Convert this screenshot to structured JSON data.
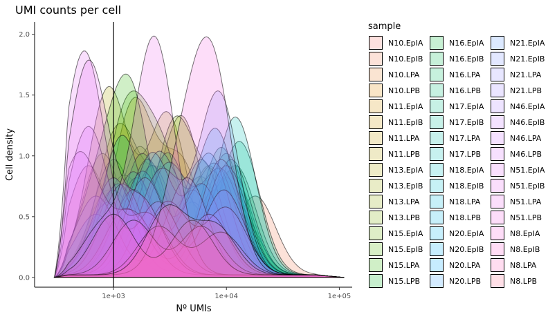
{
  "chart_data": {
    "type": "area",
    "title": "UMI counts per cell",
    "xlabel": "Nº UMIs",
    "ylabel": "Cell density",
    "x_scale": "log10",
    "xlim": [
      200,
      130000
    ],
    "ylim": [
      -0.08,
      2.1
    ],
    "x_ticks": [
      {
        "value": 1000,
        "label": "1e+03"
      },
      {
        "value": 10000,
        "label": "1e+04"
      },
      {
        "value": 100000,
        "label": "1e+05"
      }
    ],
    "y_ticks": [
      {
        "value": 0.0,
        "label": "0.0"
      },
      {
        "value": 0.5,
        "label": "0.5"
      },
      {
        "value": 1.0,
        "label": "1.0"
      },
      {
        "value": 1.5,
        "label": "1.5"
      },
      {
        "value": 2.0,
        "label": "2.0"
      }
    ],
    "vline": {
      "x": 1000
    },
    "grid": false,
    "legend_title": "sample",
    "legend_position": "right",
    "series": [
      {
        "name": "N10.EpIA",
        "color": "#F8766D",
        "peaks": [
          [
            600,
            0.9
          ],
          [
            5000,
            0.45
          ]
        ]
      },
      {
        "name": "N10.EpIB",
        "color": "#F27D52",
        "peaks": [
          [
            2000,
            0.5
          ],
          [
            18000,
            0.65
          ]
        ]
      },
      {
        "name": "N10.LPA",
        "color": "#EA8331",
        "peaks": [
          [
            1200,
            0.55
          ],
          [
            9000,
            0.6
          ]
        ]
      },
      {
        "name": "N10.LPB",
        "color": "#E38900",
        "peaks": [
          [
            900,
            0.7
          ],
          [
            6000,
            0.5
          ]
        ]
      },
      {
        "name": "N11.EpIA",
        "color": "#D89000",
        "peaks": [
          [
            1500,
            1.4
          ],
          [
            4000,
            0.9
          ]
        ]
      },
      {
        "name": "N11.EpIB",
        "color": "#CF9400",
        "peaks": [
          [
            1100,
            1.2
          ],
          [
            3000,
            0.8
          ]
        ]
      },
      {
        "name": "N11.LPA",
        "color": "#C49A00",
        "peaks": [
          [
            800,
            1.0
          ],
          [
            7000,
            0.9
          ]
        ]
      },
      {
        "name": "N11.LPB",
        "color": "#B79F00",
        "peaks": [
          [
            2500,
            0.7
          ],
          [
            12000,
            0.6
          ]
        ]
      },
      {
        "name": "N13.EpIA",
        "color": "#ABA300",
        "peaks": [
          [
            900,
            1.53
          ],
          [
            3000,
            1.32
          ]
        ]
      },
      {
        "name": "N13.EpIB",
        "color": "#9DA700",
        "peaks": [
          [
            4000,
            1.3
          ],
          [
            1200,
            0.8
          ]
        ]
      },
      {
        "name": "N13.LPA",
        "color": "#8FAA00",
        "peaks": [
          [
            1700,
            1.05
          ],
          [
            6000,
            0.8
          ]
        ]
      },
      {
        "name": "N13.LPB",
        "color": "#7CAE00",
        "peaks": [
          [
            3500,
            1.25
          ],
          [
            9000,
            0.7
          ]
        ]
      },
      {
        "name": "N15.EpIA",
        "color": "#68B100",
        "peaks": [
          [
            1000,
            0.95
          ],
          [
            5000,
            0.6
          ]
        ]
      },
      {
        "name": "N15.EpIB",
        "color": "#4EB400",
        "peaks": [
          [
            1300,
            1.3
          ],
          [
            2800,
            0.9
          ]
        ]
      },
      {
        "name": "N15.LPA",
        "color": "#2BB600",
        "peaks": [
          [
            1400,
            1.48
          ],
          [
            700,
            0.6
          ]
        ]
      },
      {
        "name": "N15.LPB",
        "color": "#00B81F",
        "peaks": [
          [
            1800,
            1.0
          ],
          [
            8000,
            0.7
          ]
        ]
      },
      {
        "name": "N16.EpIA",
        "color": "#00BA38",
        "peaks": [
          [
            2200,
            0.9
          ],
          [
            10000,
            0.8
          ]
        ]
      },
      {
        "name": "N16.EpIB",
        "color": "#00BC50",
        "peaks": [
          [
            3000,
            1.0
          ],
          [
            11000,
            0.85
          ]
        ]
      },
      {
        "name": "N16.LPA",
        "color": "#00BD64",
        "peaks": [
          [
            1000,
            0.7
          ],
          [
            12000,
            0.9
          ]
        ]
      },
      {
        "name": "N16.LPB",
        "color": "#00BF76",
        "peaks": [
          [
            1600,
            0.8
          ],
          [
            9000,
            1.05
          ]
        ]
      },
      {
        "name": "N17.EpIA",
        "color": "#00C087",
        "peaks": [
          [
            1200,
            1.15
          ],
          [
            13000,
            1.1
          ]
        ]
      },
      {
        "name": "N17.EpIB",
        "color": "#00C097",
        "peaks": [
          [
            2000,
            0.95
          ],
          [
            10000,
            1.0
          ]
        ]
      },
      {
        "name": "N17.LPA",
        "color": "#00C0A7",
        "peaks": [
          [
            900,
            0.6
          ],
          [
            11000,
            0.95
          ]
        ]
      },
      {
        "name": "N17.LPB",
        "color": "#00C0B5",
        "peaks": [
          [
            1500,
            0.85
          ],
          [
            12000,
            1.3
          ]
        ]
      },
      {
        "name": "N18.EpIA",
        "color": "#00BFC4",
        "peaks": [
          [
            2500,
            1.0
          ],
          [
            8000,
            0.9
          ]
        ]
      },
      {
        "name": "N18.EpIB",
        "color": "#00BDD2",
        "peaks": [
          [
            1100,
            0.75
          ],
          [
            6000,
            0.95
          ]
        ]
      },
      {
        "name": "N18.LPA",
        "color": "#00BBDE",
        "peaks": [
          [
            3000,
            0.9
          ],
          [
            9000,
            0.85
          ]
        ]
      },
      {
        "name": "N18.LPB",
        "color": "#00B8E7",
        "peaks": [
          [
            700,
            0.5
          ],
          [
            5000,
            0.7
          ]
        ]
      },
      {
        "name": "N20.EpIA",
        "color": "#00B4F0",
        "peaks": [
          [
            1800,
            0.85
          ],
          [
            7000,
            1.0
          ]
        ]
      },
      {
        "name": "N20.EpIB",
        "color": "#00B0F6",
        "peaks": [
          [
            2200,
            1.0
          ],
          [
            8000,
            1.2
          ]
        ]
      },
      {
        "name": "N20.LPA",
        "color": "#00A9FF",
        "peaks": [
          [
            1500,
            0.7
          ],
          [
            6000,
            0.75
          ]
        ]
      },
      {
        "name": "N20.LPB",
        "color": "#35A2FF",
        "peaks": [
          [
            1000,
            0.8
          ],
          [
            10000,
            0.9
          ]
        ]
      },
      {
        "name": "N21.EpIA",
        "color": "#619CFF",
        "peaks": [
          [
            1200,
            0.75
          ],
          [
            9000,
            0.95
          ]
        ]
      },
      {
        "name": "N21.EpIB",
        "color": "#7F96FF",
        "peaks": [
          [
            2600,
            0.85
          ],
          [
            8500,
            1.5
          ]
        ]
      },
      {
        "name": "N21.LPA",
        "color": "#9590FF",
        "peaks": [
          [
            700,
            0.65
          ],
          [
            4500,
            0.8
          ]
        ]
      },
      {
        "name": "N21.LPB",
        "color": "#A58AFF",
        "peaks": [
          [
            1900,
            0.8
          ],
          [
            9500,
            0.7
          ]
        ]
      },
      {
        "name": "N46.EpIA",
        "color": "#B385FF",
        "peaks": [
          [
            3000,
            0.6
          ],
          [
            10000,
            0.55
          ]
        ]
      },
      {
        "name": "N46.EpIB",
        "color": "#C77CFF",
        "peaks": [
          [
            1300,
            0.55
          ],
          [
            7000,
            0.5
          ]
        ]
      },
      {
        "name": "N46.LPA",
        "color": "#D376FF",
        "peaks": [
          [
            600,
            1.22
          ],
          [
            2500,
            0.6
          ]
        ]
      },
      {
        "name": "N46.LPB",
        "color": "#DC71FA",
        "peaks": [
          [
            500,
            1.0
          ],
          [
            1500,
            0.5
          ]
        ]
      },
      {
        "name": "N51.EpIA",
        "color": "#E36EF6",
        "peaks": [
          [
            550,
            1.84
          ],
          [
            2000,
            0.5
          ]
        ]
      },
      {
        "name": "N51.EpIB",
        "color": "#EA6AF1",
        "peaks": [
          [
            600,
            1.75
          ],
          [
            1800,
            0.6
          ]
        ]
      },
      {
        "name": "N51.LPA",
        "color": "#EF67EB",
        "peaks": [
          [
            2300,
            1.95
          ],
          [
            800,
            0.4
          ]
        ]
      },
      {
        "name": "N51.LPB",
        "color": "#F564E3",
        "peaks": [
          [
            4000,
            0.8
          ],
          [
            7500,
            1.65
          ]
        ]
      },
      {
        "name": "N8.EpIA",
        "color": "#F962DD",
        "peaks": [
          [
            1500,
            0.45
          ],
          [
            6000,
            0.4
          ]
        ]
      },
      {
        "name": "N8.EpIB",
        "color": "#FD61D1",
        "peaks": [
          [
            2500,
            0.4
          ],
          [
            9000,
            0.35
          ]
        ]
      },
      {
        "name": "N8.LPA",
        "color": "#FF62BC",
        "peaks": [
          [
            1000,
            0.5
          ],
          [
            5000,
            0.45
          ]
        ]
      },
      {
        "name": "N8.LPB",
        "color": "#FF6C91",
        "peaks": [
          [
            3000,
            0.55
          ],
          [
            8000,
            0.4
          ]
        ]
      }
    ]
  }
}
